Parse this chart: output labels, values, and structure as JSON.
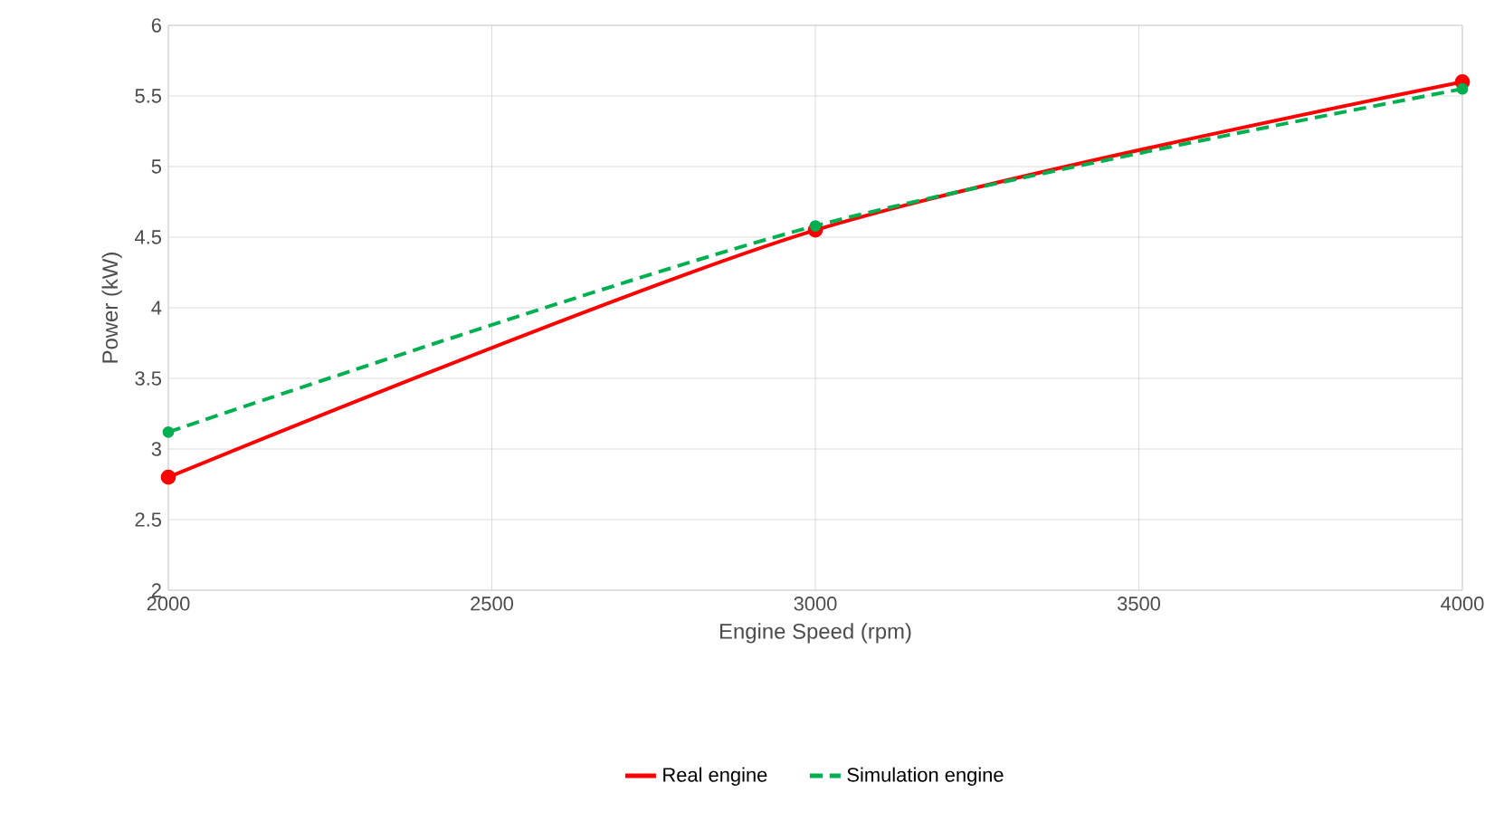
{
  "chart_data": {
    "type": "line",
    "xlabel": "Engine Speed (rpm)",
    "ylabel": "Power (kW)",
    "x": [
      2000,
      3000,
      4000
    ],
    "series": [
      {
        "name": "Real engine",
        "color": "#ff0000",
        "values": [
          2.8,
          4.55,
          5.6
        ],
        "line_style": "solid"
      },
      {
        "name": "Simulation engine",
        "color": "#00b050",
        "values": [
          3.12,
          4.58,
          5.55
        ],
        "line_style": "dashed"
      }
    ],
    "xlim": [
      2000,
      4000
    ],
    "xticks": [
      2000,
      2500,
      3000,
      3500,
      4000
    ],
    "ylim": [
      2,
      6
    ],
    "yticks": [
      2,
      2.5,
      3,
      3.5,
      4,
      4.5,
      5,
      5.5,
      6
    ],
    "grid": true,
    "legend": "bottom",
    "marker": "circle"
  }
}
